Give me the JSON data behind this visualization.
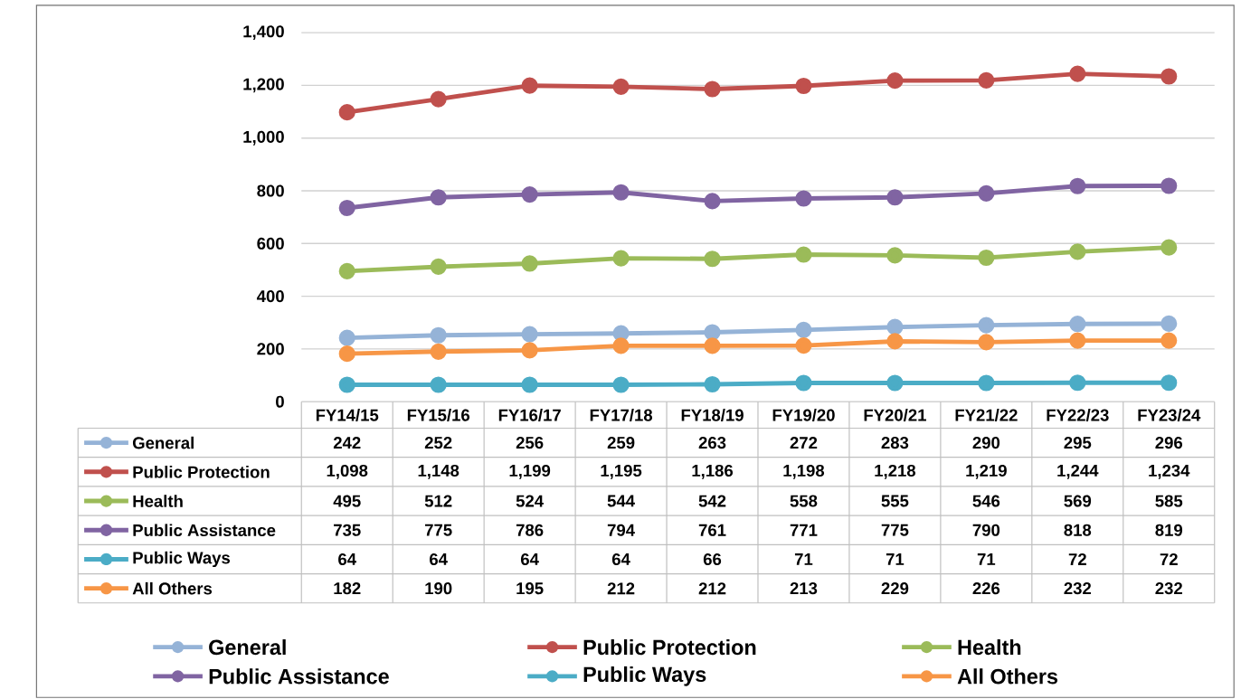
{
  "chart_data": {
    "type": "line",
    "categories": [
      "FY14/15",
      "FY15/16",
      "FY16/17",
      "FY17/18",
      "FY18/19",
      "FY19/20",
      "FY20/21",
      "FY21/22",
      "FY22/23",
      "FY23/24"
    ],
    "series": [
      {
        "name": "General",
        "color": "#95b3d7",
        "values": [
          242,
          252,
          256,
          259,
          263,
          272,
          283,
          290,
          295,
          296
        ],
        "value_labels": [
          "242",
          "252",
          "256",
          "259",
          "263",
          "272",
          "283",
          "290",
          "295",
          "296"
        ]
      },
      {
        "name": "Public Protection",
        "color": "#c0504d",
        "values": [
          1098,
          1148,
          1199,
          1195,
          1186,
          1198,
          1218,
          1219,
          1244,
          1234
        ],
        "value_labels": [
          "1,098",
          "1,148",
          "1,199",
          "1,195",
          "1,186",
          "1,198",
          "1,218",
          "1,219",
          "1,244",
          "1,234"
        ]
      },
      {
        "name": "Health",
        "color": "#9bbb59",
        "values": [
          495,
          512,
          524,
          544,
          542,
          558,
          555,
          546,
          569,
          585
        ],
        "value_labels": [
          "495",
          "512",
          "524",
          "544",
          "542",
          "558",
          "555",
          "546",
          "569",
          "585"
        ]
      },
      {
        "name": "Public Assistance",
        "color": "#8064a2",
        "values": [
          735,
          775,
          786,
          794,
          761,
          771,
          775,
          790,
          818,
          819
        ],
        "value_labels": [
          "735",
          "775",
          "786",
          "794",
          "761",
          "771",
          "775",
          "790",
          "818",
          "819"
        ]
      },
      {
        "name": "Public Ways",
        "color": "#4bacc6",
        "values": [
          64,
          64,
          64,
          64,
          66,
          71,
          71,
          71,
          72,
          72
        ],
        "value_labels": [
          "64",
          "64",
          "64",
          "64",
          "66",
          "71",
          "71",
          "71",
          "72",
          "72"
        ]
      },
      {
        "name": "All Others",
        "color": "#f79646",
        "values": [
          182,
          190,
          195,
          212,
          212,
          213,
          229,
          226,
          232,
          232
        ],
        "value_labels": [
          "182",
          "190",
          "195",
          "212",
          "212",
          "213",
          "229",
          "226",
          "232",
          "232"
        ]
      }
    ],
    "ylim": [
      0,
      1400
    ],
    "yticks": [
      0,
      200,
      400,
      600,
      800,
      {
        "value": 1000,
        "label": "1,000"
      },
      {
        "value": 1200,
        "label": "1,200"
      },
      {
        "value": 1400,
        "label": "1,400"
      }
    ],
    "grid": "y",
    "legend": "bottom",
    "marker": "circle",
    "line_style": "solid"
  }
}
